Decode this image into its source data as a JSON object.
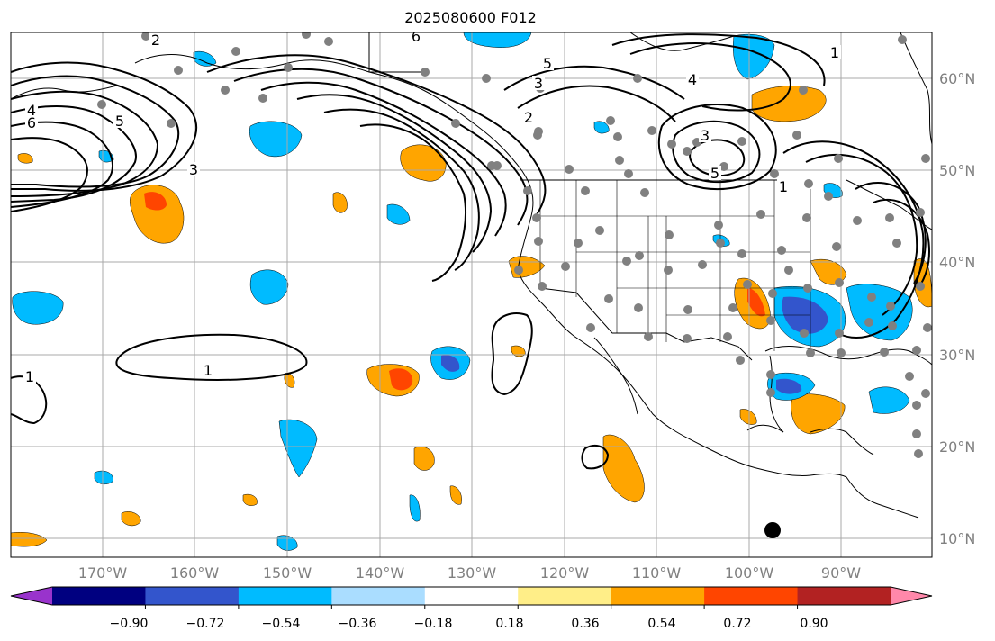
{
  "title": "2025080600 F012",
  "map": {
    "lon_labels": [
      "170°W",
      "160°W",
      "150°W",
      "140°W",
      "130°W",
      "120°W",
      "110°W",
      "100°W",
      "90°W"
    ],
    "lat_labels": [
      "60°N",
      "50°N",
      "40°N",
      "30°N",
      "20°N",
      "10°N"
    ],
    "grid": true,
    "contour_labels": [
      "6",
      "5",
      "4",
      "3",
      "2",
      "1",
      "6",
      "5",
      "4",
      "3",
      "5",
      "3",
      "2",
      "1",
      "1",
      "1"
    ],
    "colors": {
      "land_outline": "#000000",
      "grid": "#a8a8a8",
      "stations": "#808080",
      "contours": "#000000"
    }
  },
  "colorbar": {
    "tick_labels": [
      "−0.90",
      "−0.72",
      "−0.54",
      "−0.36",
      "−0.18",
      "0.18",
      "0.36",
      "0.54",
      "0.72",
      "0.90"
    ],
    "colors": [
      "#9933cc",
      "#000080",
      "#3355cc",
      "#00bbff",
      "#aaddff",
      "#ffffff",
      "#ffee88",
      "#ffa500",
      "#ff4500",
      "#b22222",
      "#ff88aa"
    ]
  }
}
